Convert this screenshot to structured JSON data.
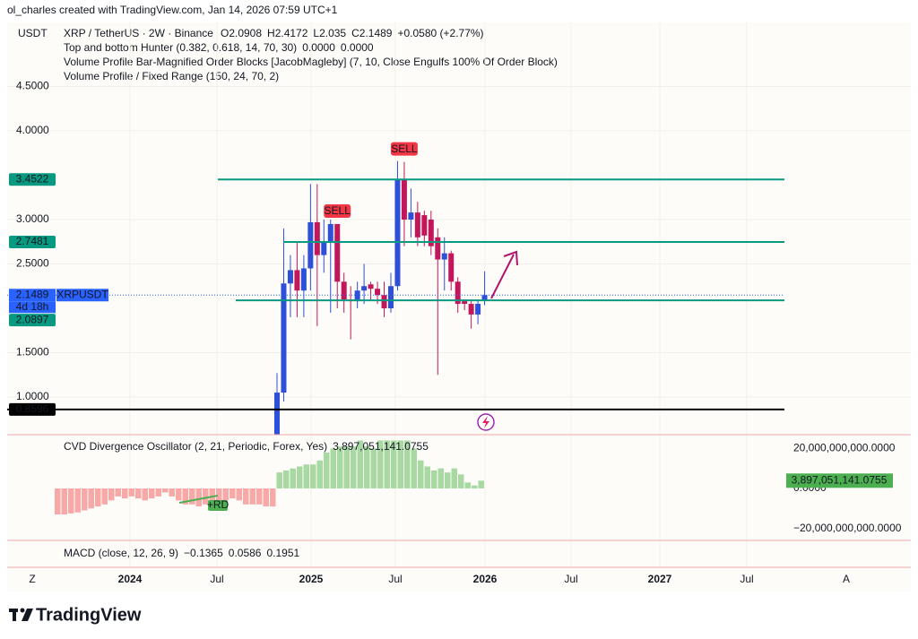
{
  "header": {
    "attribution": "ol_charles created with TradingView.com, Jan 14, 2026 07:59 UTC+1"
  },
  "ui": {
    "zoom_button": "Z",
    "auto_button": "A"
  },
  "footer": {
    "brand": "TradingView"
  },
  "chart_data": [
    {
      "type": "candlestick",
      "currency": "USDT",
      "title": "XRP / TetherUS · 2W · Binance",
      "ohlc_labels": [
        "O",
        "H",
        "L",
        "C"
      ],
      "change": "+0.0580 (+2.77%)",
      "indicators": [
        {
          "name": "Top and bottom Hunter (0.382, 0.618, 14, 70, 30)",
          "values": [
            {
              "value": 0,
              "label": "0.0000"
            },
            {
              "value": 0,
              "label": "0.0000"
            }
          ],
          "colors": [
            "#22ab94",
            "#f23645"
          ]
        },
        {
          "name": "Volume Profile Bar-Magnified Order Blocks [JacobMagleby] (7, 10, Close Engulfs 100% Of Order Block)"
        },
        {
          "name": "Volume Profile / Fixed Range (150, 24, 70, 2)"
        }
      ],
      "open": [
        0.56,
        1.05,
        2.28,
        2.43,
        2.2,
        2.45,
        2.97,
        2.6,
        2.75,
        2.95,
        2.3,
        2.1,
        2.08,
        2.2,
        2.27,
        2.22,
        2.15,
        2.0,
        2.25,
        3.45,
        3.0,
        3.08,
        3.05,
        3.0,
        2.8,
        2.55,
        2.62,
        2.3,
        2.08,
        2.05,
        1.93,
        2.0908
      ],
      "high": [
        1.27,
        2.9,
        2.6,
        2.75,
        2.6,
        3.4,
        3.4,
        3.0,
        3.0,
        2.95,
        2.4,
        2.25,
        2.3,
        2.5,
        2.3,
        2.3,
        2.3,
        2.4,
        3.66,
        3.65,
        3.35,
        3.2,
        3.1,
        3.1,
        2.9,
        2.8,
        2.65,
        2.35,
        2.1,
        2.1,
        2.1,
        2.4172
      ],
      "low": [
        0.5,
        0.95,
        1.9,
        1.9,
        1.9,
        2.2,
        1.8,
        2.4,
        1.95,
        2.0,
        1.95,
        1.65,
        2.0,
        2.05,
        2.1,
        2.05,
        1.9,
        1.95,
        2.2,
        2.7,
        2.8,
        2.7,
        2.7,
        2.6,
        1.25,
        2.2,
        2.2,
        1.95,
        1.98,
        1.77,
        1.82,
        2.035
      ],
      "close": [
        1.05,
        2.28,
        2.43,
        2.2,
        2.45,
        2.97,
        2.6,
        2.75,
        2.95,
        2.3,
        2.1,
        2.08,
        2.2,
        2.25,
        2.22,
        2.15,
        2.0,
        2.25,
        3.45,
        3.0,
        3.08,
        2.8,
        2.82,
        2.7,
        2.55,
        2.62,
        2.3,
        2.05,
        2.05,
        1.93,
        2.05,
        2.1489
      ],
      "up_color": "#2e4fd8",
      "down_color": "#c2185b",
      "ylim": [
        0.5758,
        5.2222
      ],
      "yticks": [
        {
          "value": 4.5,
          "label": "4.5000"
        },
        {
          "value": 4,
          "label": "4.0000"
        },
        {
          "value": 3,
          "label": "3.0000"
        },
        {
          "value": 2.5,
          "label": "2.5000"
        },
        {
          "value": 1.5,
          "label": "1.5000"
        },
        {
          "value": 1,
          "label": "1.0000"
        }
      ],
      "levels": [
        {
          "value": 3.4522,
          "color": "#089981"
        },
        {
          "value": 2.7481,
          "color": "#089981"
        },
        {
          "value": 2.0897,
          "color": "#089981"
        },
        {
          "value": 0.8596,
          "color": "#000000"
        }
      ],
      "symbol": "XRPUSDT",
      "countdown": "4d 18h",
      "signals": [
        "SELL",
        "SELL"
      ],
      "x_labels": [
        "2024",
        "Jul",
        "2025",
        "Jul",
        "2026",
        "Jul",
        "2027",
        "Jul"
      ]
    },
    {
      "type": "bar",
      "title": "CVD Divergence Oscillator (2, 21, Periodic, Forex, Yes)",
      "last_label": "3,897,051,141.0755",
      "divergence_label": "+RD",
      "values": [
        -13000000000,
        -13000000000,
        -12500000000,
        -12000000000,
        -11000000000,
        -10000000000,
        -9000000000,
        -8000000000,
        -6000000000,
        -4000000000,
        -5000000000,
        -4000000000,
        -5000000000,
        -6000000000,
        -5000000000,
        -4000000000,
        -2000000000,
        -4000000000,
        -6000000000,
        -8000000000,
        -8000000000,
        -9000000000,
        -8000000000,
        -7000000000,
        -6000000000,
        -6000000000,
        -5000000000,
        -6000000000,
        -8000000000,
        -8000000000,
        -8000000000,
        -9000000000,
        -9000000000,
        8000000000,
        9000000000,
        10000000000,
        11000000000,
        12000000000,
        12000000000,
        14000000000,
        18000000000,
        20000000000,
        21000000000,
        21000000000,
        21000000000,
        24000000000,
        21000000000,
        20000000000,
        24000000000,
        24000000000,
        24000000000,
        24000000000,
        24000000000,
        20000000000,
        14000000000,
        11000000000,
        9000000000,
        10000000000,
        8000000000,
        10000000000,
        7000000000,
        3000000000,
        1500000000,
        3897051141.0755
      ],
      "up_color": "#a9d9a2",
      "down_color": "#f7a9a8",
      "ylim": [
        -26000000000,
        26000000000
      ],
      "yticks": [
        {
          "value": 20000000000,
          "label": "20,000,000,000.0000"
        },
        {
          "value": 0,
          "label": "0.0000"
        },
        {
          "value": -20000000000,
          "label": "−20,000,000,000.0000"
        }
      ]
    },
    {
      "type": "macd",
      "title": "MACD (close, 12, 26, 9)",
      "values": [
        {
          "value": -0.1365,
          "label": "−0.1365"
        },
        {
          "value": 0.0586,
          "label": "0.0586"
        },
        {
          "value": 0.1951,
          "label": "0.1951"
        }
      ],
      "colors": [
        "#f7a9a8",
        "#2962ff",
        "#ff9800"
      ]
    }
  ]
}
